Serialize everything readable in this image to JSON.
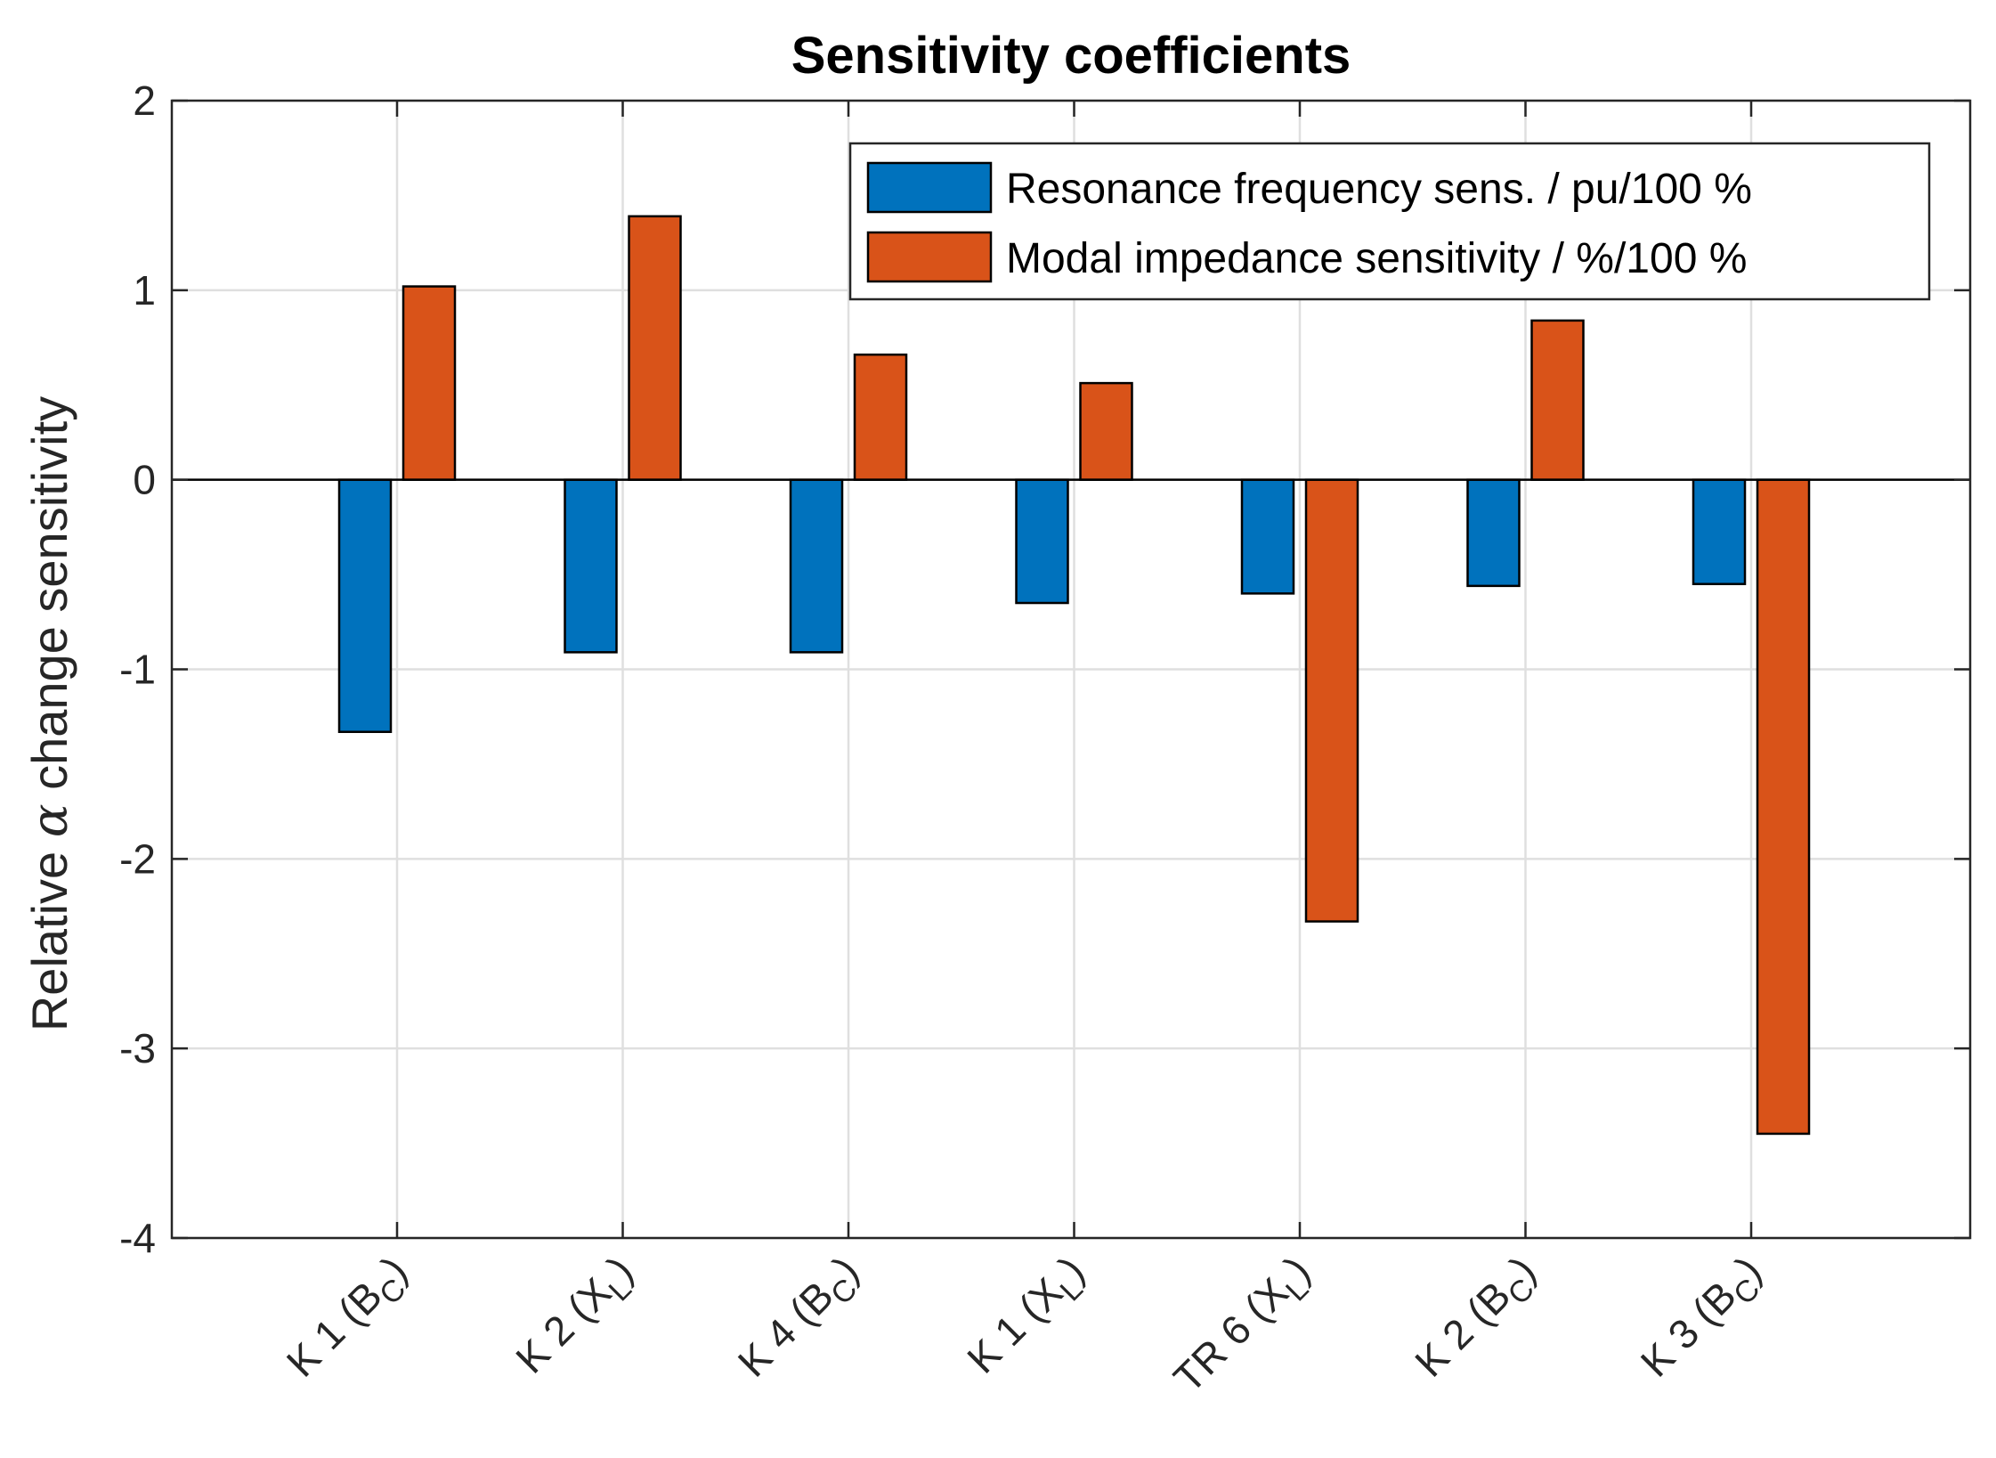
{
  "chart_data": {
    "type": "bar",
    "title": "Sensitivity coefficients",
    "ylabel": "Relative α change sensitivity",
    "ylabel_parts": [
      "Relative ",
      "α",
      " change sensitivity"
    ],
    "ylim": [
      -4,
      2
    ],
    "yticks": [
      2,
      1,
      0,
      -1,
      -2,
      -3,
      -4
    ],
    "grid": true,
    "legend_position": "top-right",
    "categories": [
      {
        "main": "K 1 (B",
        "sub": "C",
        "close": ")"
      },
      {
        "main": "K 2 (X",
        "sub": "L",
        "close": ")"
      },
      {
        "main": "K 4 (B",
        "sub": "C",
        "close": ")"
      },
      {
        "main": "K 1 (X",
        "sub": "L",
        "close": ")"
      },
      {
        "main": "TR 6 (X",
        "sub": "L",
        "close": ")"
      },
      {
        "main": "K 2 (B",
        "sub": "C",
        "close": ")"
      },
      {
        "main": "K 3 (B",
        "sub": "C",
        "close": ")"
      }
    ],
    "series": [
      {
        "name": "Resonance frequency sens. / pu/100 %",
        "color": "#0072BD",
        "values": [
          -1.33,
          -0.91,
          -0.91,
          -0.65,
          -0.6,
          -0.56,
          -0.55
        ]
      },
      {
        "name": "Modal impedance sensitivity / %/100 %",
        "color": "#D95319",
        "values": [
          1.02,
          1.39,
          0.66,
          0.51,
          -2.33,
          0.84,
          -3.45
        ]
      }
    ]
  }
}
